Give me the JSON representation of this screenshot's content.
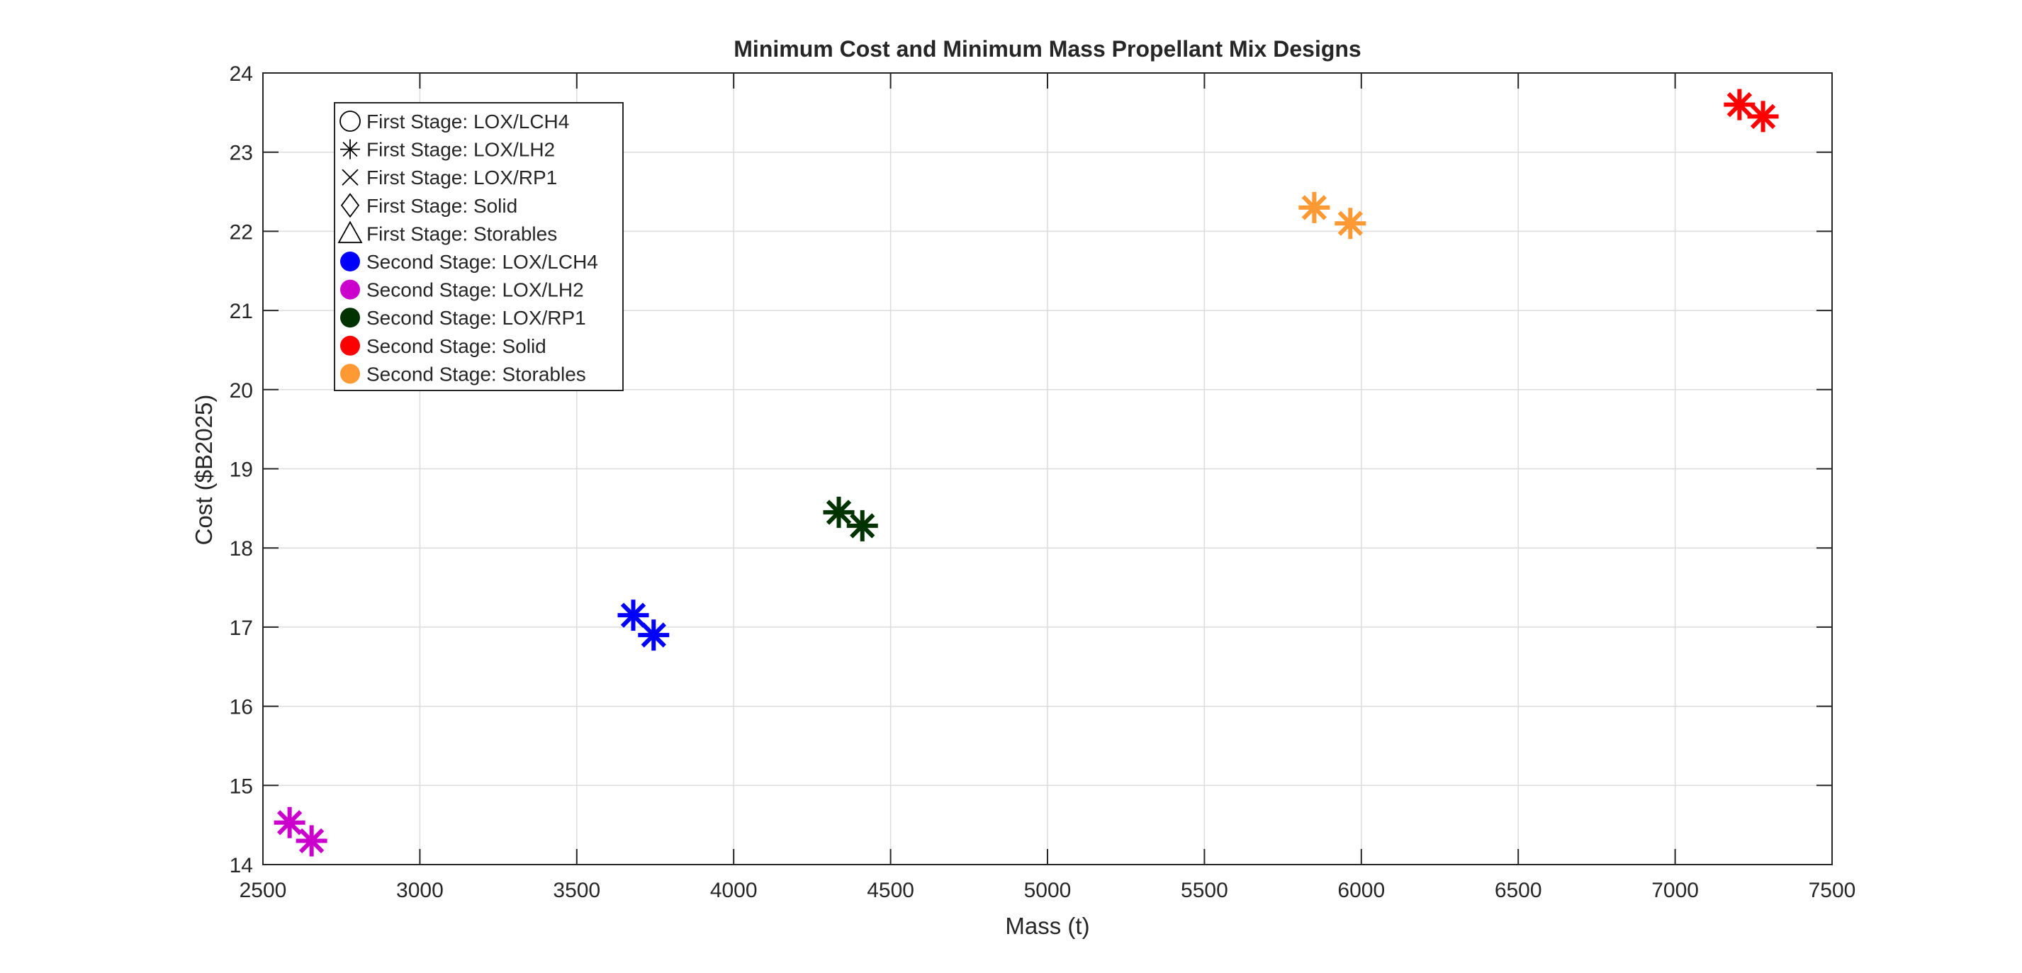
{
  "chart_data": {
    "type": "scatter",
    "title": "Minimum Cost and Minimum Mass Propellant Mix Designs",
    "xlabel": "Mass (t)",
    "ylabel": "Cost ($B2025)",
    "xlim": [
      2500,
      7500
    ],
    "ylim": [
      14,
      24
    ],
    "xticks": [
      2500,
      3000,
      3500,
      4000,
      4500,
      5000,
      5500,
      6000,
      6500,
      7000,
      7500
    ],
    "yticks": [
      14,
      15,
      16,
      17,
      18,
      19,
      20,
      21,
      22,
      23,
      24
    ],
    "grid": true,
    "legend_position": "top-left",
    "legend": [
      {
        "label": "First Stage: LOX/LCH4",
        "symbol": "circle",
        "color": "#000000"
      },
      {
        "label": "First Stage: LOX/LH2",
        "symbol": "asterisk",
        "color": "#000000"
      },
      {
        "label": "First Stage: LOX/RP1",
        "symbol": "x",
        "color": "#000000"
      },
      {
        "label": "First Stage: Solid",
        "symbol": "diamond",
        "color": "#000000"
      },
      {
        "label": "First Stage: Storables",
        "symbol": "triangle",
        "color": "#000000"
      },
      {
        "label": "Second Stage: LOX/LCH4",
        "symbol": "dot",
        "color": "#0000ff"
      },
      {
        "label": "Second Stage: LOX/LH2",
        "symbol": "dot",
        "color": "#cc00cc"
      },
      {
        "label": "Second Stage: LOX/RP1",
        "symbol": "dot",
        "color": "#003300"
      },
      {
        "label": "Second Stage: Solid",
        "symbol": "dot",
        "color": "#ff0000"
      },
      {
        "label": "Second Stage: Storables",
        "symbol": "dot",
        "color": "#ff9933"
      }
    ],
    "points": [
      {
        "x": 2585,
        "y": 14.53,
        "marker": "asterisk",
        "color": "#cc00cc"
      },
      {
        "x": 2655,
        "y": 14.3,
        "marker": "asterisk",
        "color": "#cc00cc"
      },
      {
        "x": 3680,
        "y": 17.15,
        "marker": "asterisk",
        "color": "#0000ff"
      },
      {
        "x": 3745,
        "y": 16.9,
        "marker": "asterisk",
        "color": "#0000ff"
      },
      {
        "x": 4335,
        "y": 18.45,
        "marker": "asterisk",
        "color": "#003300"
      },
      {
        "x": 4410,
        "y": 18.28,
        "marker": "asterisk",
        "color": "#003300"
      },
      {
        "x": 5850,
        "y": 22.3,
        "marker": "asterisk",
        "color": "#ff9933"
      },
      {
        "x": 5965,
        "y": 22.1,
        "marker": "asterisk",
        "color": "#ff9933"
      },
      {
        "x": 7205,
        "y": 23.6,
        "marker": "asterisk",
        "color": "#ff0000"
      },
      {
        "x": 7280,
        "y": 23.45,
        "marker": "asterisk",
        "color": "#ff0000"
      }
    ]
  }
}
